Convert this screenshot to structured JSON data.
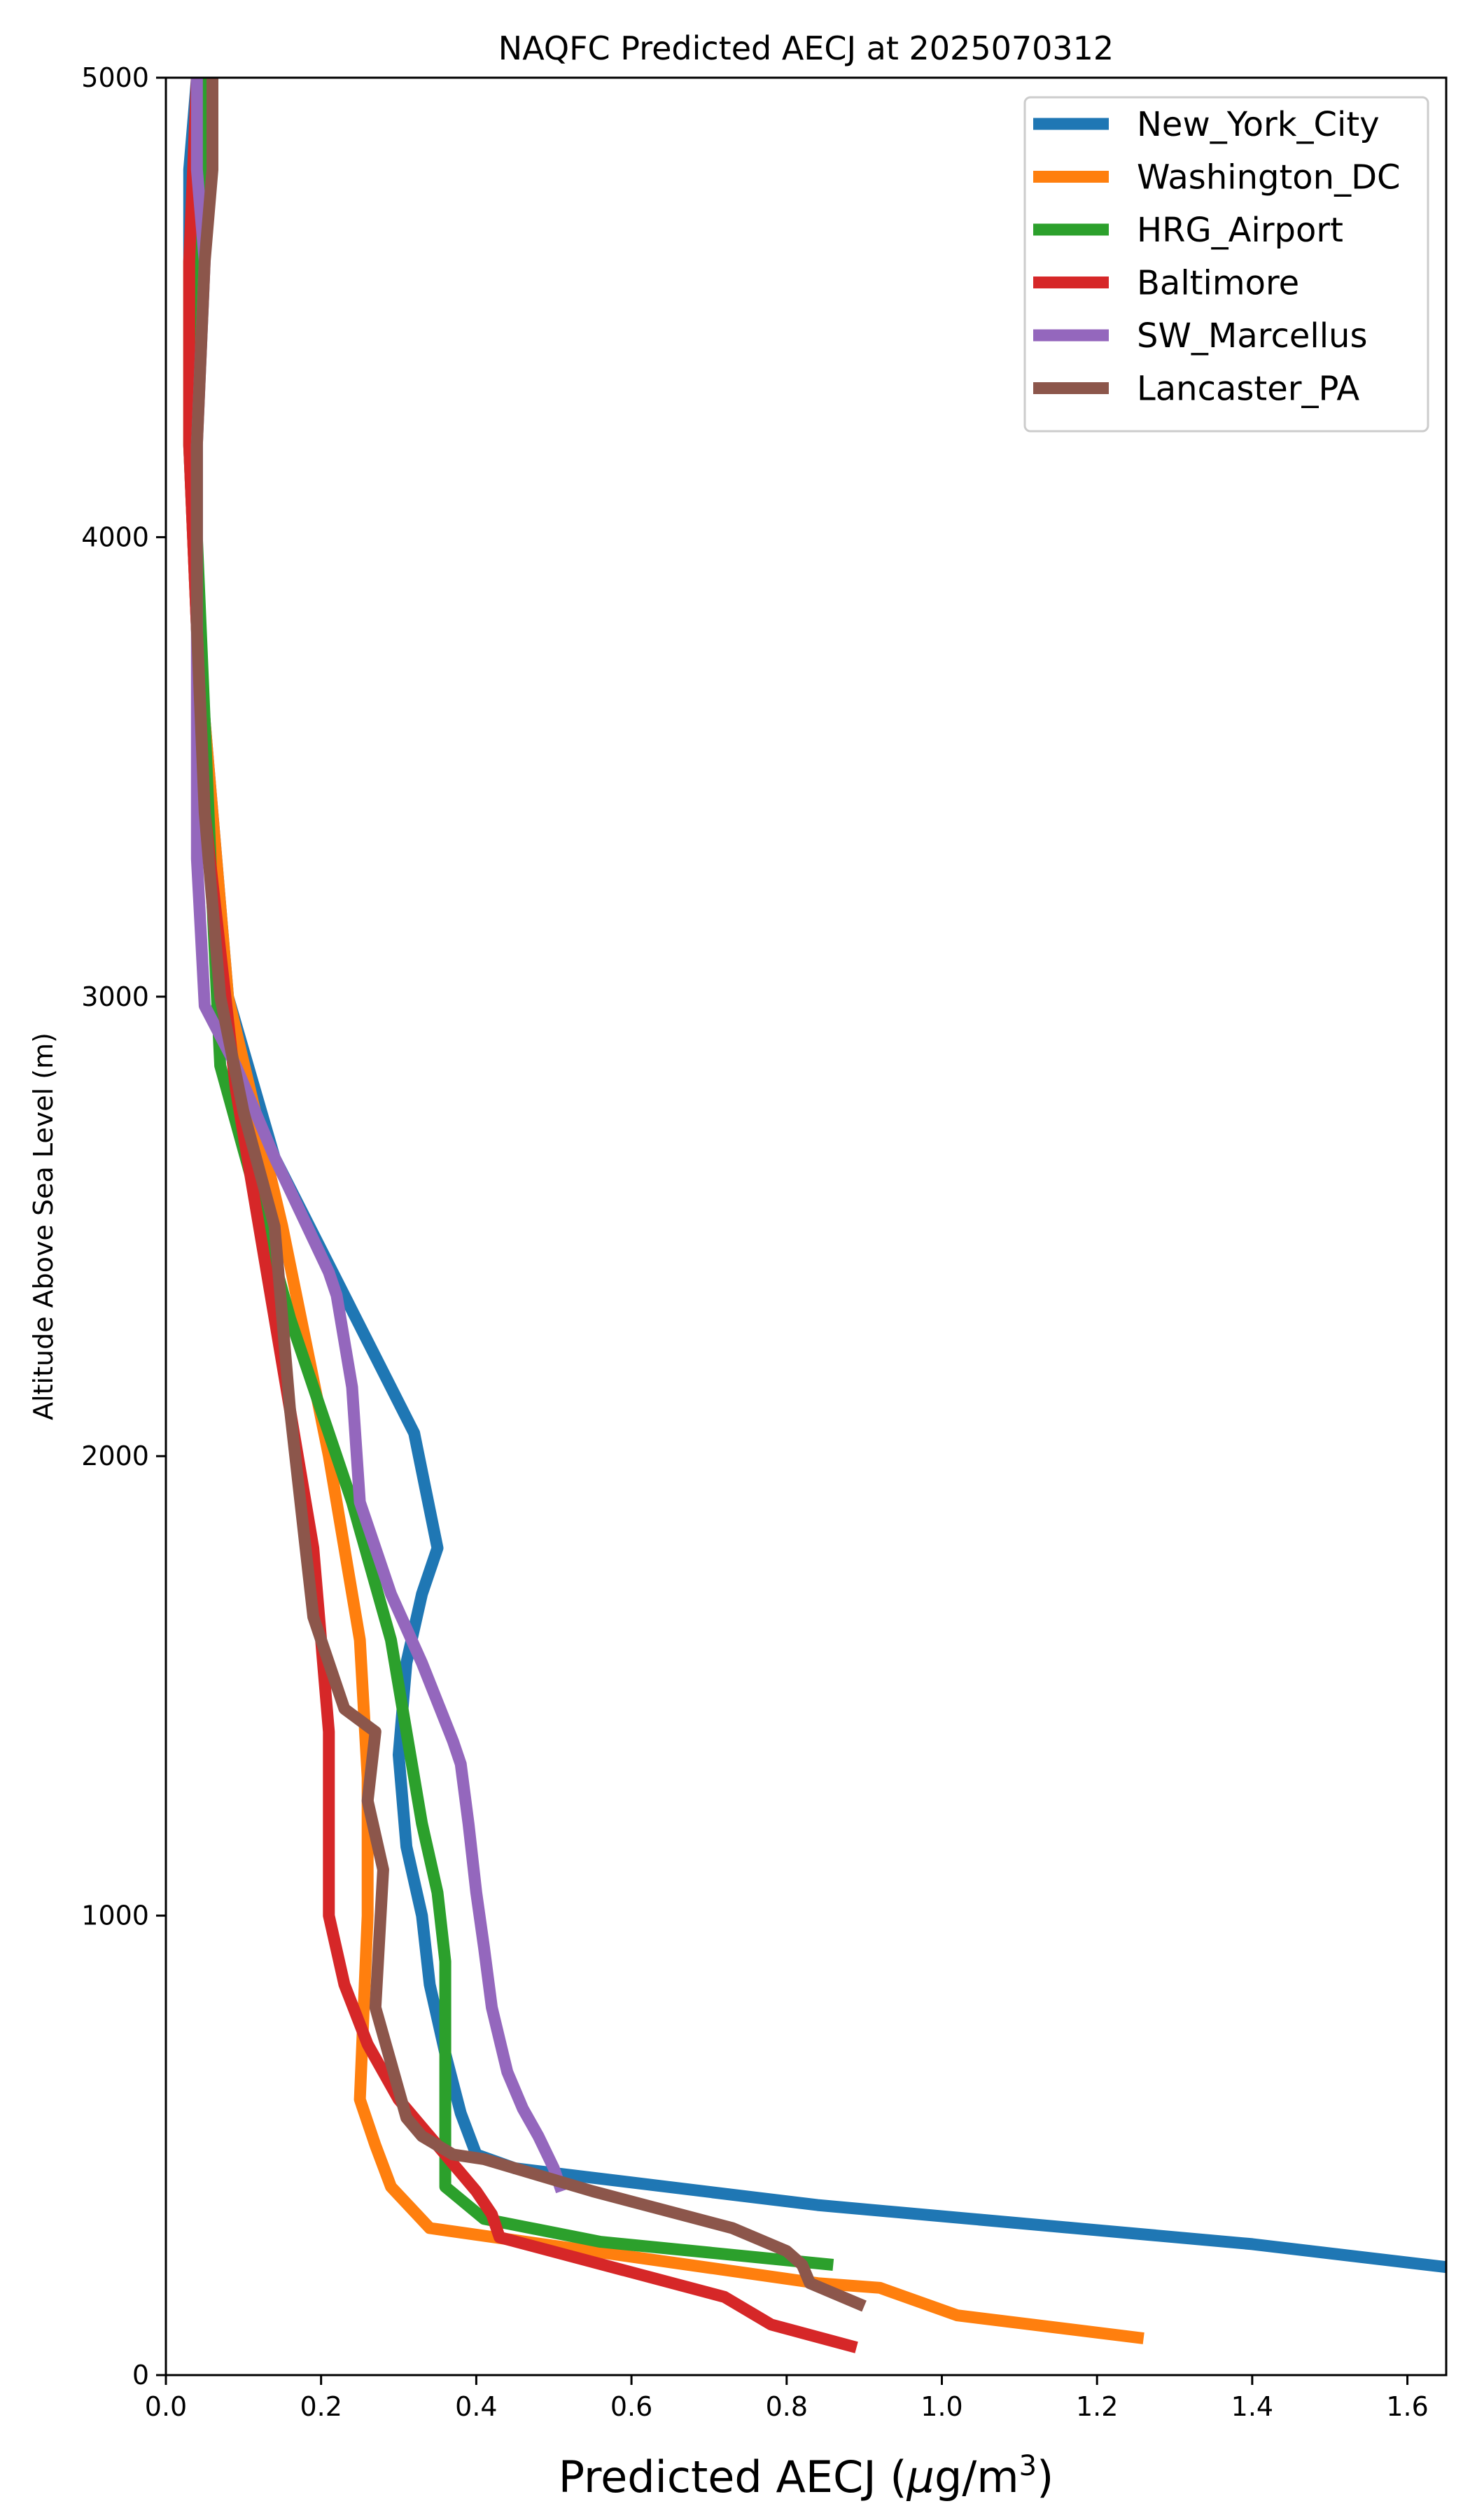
{
  "chart_data": {
    "type": "line",
    "title": "NAQFC Predicted AECJ at 2025070312",
    "xlabel_main": "Predicted AECJ (",
    "xlabel_mu": "μ",
    "xlabel_unit": "g/m",
    "xlabel_sup": "3",
    "xlabel_close": ")",
    "ylabel": "Altitude Above Sea Level (m)",
    "xlim": [
      0,
      1.65
    ],
    "ylim": [
      0,
      5000
    ],
    "xticks": [
      0.0,
      0.2,
      0.4,
      0.6,
      0.8,
      1.0,
      1.2,
      1.4,
      1.6
    ],
    "xtick_labels": [
      "0.0",
      "0.2",
      "0.4",
      "0.6",
      "0.8",
      "1.0",
      "1.2",
      "1.4",
      "1.6"
    ],
    "yticks": [
      0,
      1000,
      2000,
      3000,
      4000,
      5000
    ],
    "ytick_labels": [
      "0",
      "1000",
      "2000",
      "3000",
      "4000",
      "5000"
    ],
    "grid": false,
    "legend_position": "top-right",
    "series": [
      {
        "name": "New_York_City",
        "color": "#1f77b4",
        "x": [
          1.65,
          1.4,
          0.84,
          0.45,
          0.4,
          0.38,
          0.36,
          0.34,
          0.33,
          0.31,
          0.3,
          0.31,
          0.33,
          0.35,
          0.32,
          0.14,
          0.08,
          0.06,
          0.04,
          0.03,
          0.03,
          0.03,
          0.04
        ],
        "y": [
          235,
          285,
          370,
          450,
          480,
          570,
          700,
          850,
          1000,
          1150,
          1350,
          1550,
          1700,
          1800,
          2050,
          2650,
          3000,
          3400,
          3800,
          4200,
          4600,
          4800,
          5000
        ]
      },
      {
        "name": "Washington_DC",
        "color": "#ff7f0e",
        "x": [
          1.26,
          1.02,
          0.92,
          0.84,
          0.34,
          0.29,
          0.27,
          0.25,
          0.26,
          0.26,
          0.25,
          0.21,
          0.15,
          0.08,
          0.06,
          0.04,
          0.03,
          0.03,
          0.04,
          0.05
        ],
        "y": [
          80,
          130,
          190,
          200,
          320,
          410,
          500,
          600,
          1000,
          1300,
          1600,
          2000,
          2500,
          3000,
          3400,
          3800,
          4200,
          4600,
          4800,
          5000
        ]
      },
      {
        "name": "HRG_Airport",
        "color": "#2ca02c",
        "x": [
          0.86,
          0.56,
          0.41,
          0.36,
          0.36,
          0.36,
          0.35,
          0.33,
          0.31,
          0.29,
          0.24,
          0.16,
          0.07,
          0.06,
          0.05,
          0.04,
          0.04,
          0.05
        ],
        "y": [
          240,
          290,
          340,
          410,
          600,
          900,
          1050,
          1200,
          1400,
          1600,
          1900,
          2300,
          2850,
          3200,
          3600,
          4000,
          4500,
          5000
        ]
      },
      {
        "name": "Baltimore",
        "color": "#d62728",
        "x": [
          0.89,
          0.78,
          0.72,
          0.43,
          0.42,
          0.4,
          0.3,
          0.26,
          0.23,
          0.21,
          0.21,
          0.2,
          0.19,
          0.16,
          0.12,
          0.09,
          0.07,
          0.05,
          0.04,
          0.03,
          0.03,
          0.04
        ],
        "y": [
          60,
          110,
          170,
          300,
          350,
          400,
          600,
          720,
          850,
          1000,
          1400,
          1600,
          1800,
          2100,
          2500,
          2800,
          3100,
          3400,
          3800,
          4200,
          4600,
          5000
        ]
      },
      {
        "name": "SW_Marcellus",
        "color": "#9467bd",
        "x": [
          0.51,
          0.5,
          0.48,
          0.46,
          0.44,
          0.42,
          0.41,
          0.4,
          0.39,
          0.38,
          0.37,
          0.33,
          0.29,
          0.25,
          0.24,
          0.22,
          0.21,
          0.14,
          0.09,
          0.05,
          0.04,
          0.04,
          0.04,
          0.05,
          0.04,
          0.04
        ],
        "y": [
          400,
          450,
          520,
          580,
          660,
          800,
          930,
          1050,
          1200,
          1330,
          1380,
          1550,
          1700,
          1900,
          2150,
          2350,
          2400,
          2650,
          2850,
          2980,
          3300,
          3800,
          4200,
          4600,
          4800,
          5000
        ]
      },
      {
        "name": "Lancaster_PA",
        "color": "#8c564b",
        "x": [
          0.9,
          0.83,
          0.82,
          0.8,
          0.73,
          0.55,
          0.41,
          0.37,
          0.33,
          0.31,
          0.29,
          0.27,
          0.28,
          0.26,
          0.27,
          0.23,
          0.19,
          0.18,
          0.16,
          0.14,
          0.1,
          0.07,
          0.05,
          0.04,
          0.04,
          0.05,
          0.06,
          0.06
        ],
        "y": [
          150,
          200,
          240,
          270,
          320,
          400,
          470,
          480,
          520,
          560,
          680,
          800,
          1100,
          1250,
          1400,
          1450,
          1650,
          1800,
          2100,
          2500,
          2750,
          3000,
          3400,
          3800,
          4200,
          4600,
          4800,
          5000
        ]
      }
    ]
  }
}
